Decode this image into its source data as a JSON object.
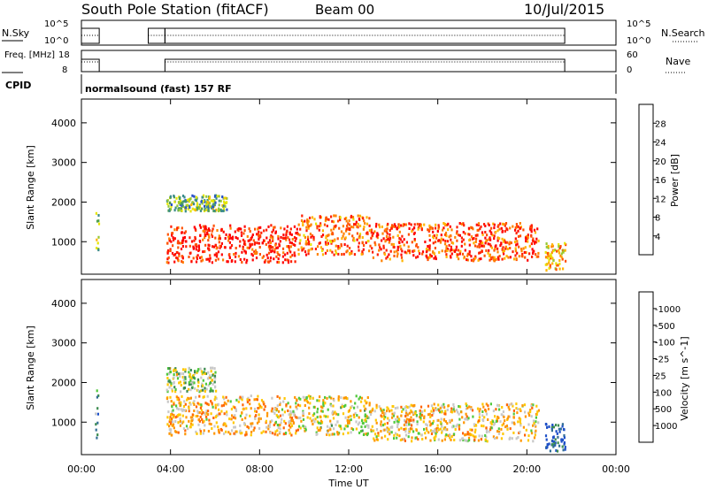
{
  "header": {
    "station": "South Pole Station (fitACF)",
    "beam": "Beam 00",
    "date": "10/Jul/2015"
  },
  "chart_data": [
    {
      "type": "line",
      "name": "status-panel-1",
      "left_label": "N.Sky",
      "left_ticks": [
        "10^5",
        "10^0"
      ],
      "right_label": "N.Search",
      "right_ticks": [
        "10^5",
        "10^0"
      ],
      "xlim": [
        "00:00",
        "24:00"
      ]
    },
    {
      "type": "line",
      "name": "status-panel-2",
      "left_label": "Freq. [MHz]",
      "left_ticks": [
        "18",
        "8"
      ],
      "right_label": "Nave",
      "right_ticks": [
        "60",
        "0"
      ],
      "xlim": [
        "00:00",
        "24:00"
      ]
    },
    {
      "type": "text",
      "name": "cpid-panel",
      "label": "CPID",
      "text": "normalsound (fast) 157 RF"
    },
    {
      "type": "heatmap",
      "name": "power",
      "ylabel": "Slant Range [km]",
      "yticks": [
        1000,
        2000,
        3000,
        4000
      ],
      "ylim": [
        180,
        4600
      ],
      "xticks": [
        "00:00",
        "04:00",
        "08:00",
        "12:00",
        "16:00",
        "20:00",
        "00:00"
      ],
      "xlim_hours": [
        0,
        24
      ],
      "colorbar": {
        "label": "Power [dB]",
        "ticks": [
          "4",
          "8",
          "12",
          "16",
          "20",
          "24",
          "28"
        ],
        "colors": [
          "#0000ff",
          "#2850c8",
          "#3c8c8c",
          "#50a050",
          "#96c832",
          "#e6e600",
          "#ffb400",
          "#ff8200",
          "#ff5000",
          "#ff1e00",
          "#ff0000"
        ]
      },
      "blocks": [
        {
          "t": [
            0.6,
            0.75
          ],
          "r": [
            600,
            1900
          ],
          "v": 0.4
        },
        {
          "t": [
            3.8,
            9.7
          ],
          "r": [
            500,
            1450
          ],
          "v": 0.9
        },
        {
          "t": [
            9.7,
            13.0
          ],
          "r": [
            700,
            1700
          ],
          "v": 0.75
        },
        {
          "t": [
            13.0,
            20.5
          ],
          "r": [
            550,
            1500
          ],
          "v": 0.8
        },
        {
          "t": [
            3.8,
            6.5
          ],
          "r": [
            1800,
            2200
          ],
          "v": 0.35
        },
        {
          "t": [
            20.8,
            21.7
          ],
          "r": [
            300,
            1000
          ],
          "v": 0.6
        }
      ]
    },
    {
      "type": "heatmap",
      "name": "velocity",
      "ylabel": "Slant Range [km]",
      "yticks": [
        1000,
        2000,
        3000,
        4000
      ],
      "ylim": [
        180,
        4600
      ],
      "xticks": [
        "00:00",
        "04:00",
        "08:00",
        "12:00",
        "16:00",
        "20:00",
        "00:00"
      ],
      "xlabel": "Time UT",
      "xlim_hours": [
        0,
        24
      ],
      "colorbar": {
        "label": "Velocity [m s^-1]",
        "ticks": [
          "1000",
          "500",
          "100",
          "25",
          "-25",
          "-100",
          "-500",
          "-1000"
        ],
        "colors": [
          "#1e50c8",
          "#326e96",
          "#3c8c50",
          "#50c83c",
          "#c8c8c8",
          "#ffc800",
          "#ff9600",
          "#ff6400",
          "#ff0000"
        ]
      },
      "blocks": [
        {
          "t": [
            0.6,
            0.75
          ],
          "r": [
            600,
            1900
          ],
          "v": 0.3
        },
        {
          "t": [
            3.8,
            9.7
          ],
          "r": [
            700,
            1700
          ],
          "v": 0.65
        },
        {
          "t": [
            9.7,
            13.0
          ],
          "r": [
            700,
            1700
          ],
          "v": 0.55
        },
        {
          "t": [
            13.0,
            20.5
          ],
          "r": [
            550,
            1500
          ],
          "v": 0.6
        },
        {
          "t": [
            3.8,
            6.0
          ],
          "r": [
            1800,
            2400
          ],
          "v": 0.45
        },
        {
          "t": [
            20.8,
            21.7
          ],
          "r": [
            300,
            1000
          ],
          "v": 0.1
        }
      ]
    }
  ]
}
